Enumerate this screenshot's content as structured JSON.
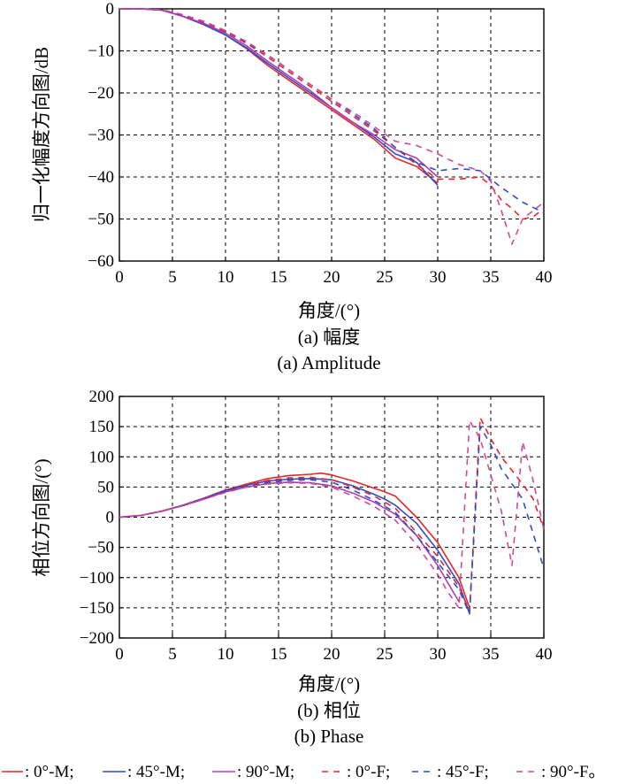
{
  "chart_data": [
    {
      "type": "line",
      "xlabel": "角度/(°)",
      "ylabel": "归一化幅度方向图/dB",
      "xlim": [
        0,
        40
      ],
      "ylim": [
        -60,
        0
      ],
      "x_ticks": [
        "0",
        "5",
        "10",
        "15",
        "20",
        "25",
        "30",
        "35",
        "40"
      ],
      "y_ticks": [
        "0",
        "−10",
        "−20",
        "−30",
        "−40",
        "−50",
        "−60"
      ],
      "grid": true,
      "caption_cn": "(a) 幅度",
      "caption_en": "(a) Amplitude",
      "series": [
        {
          "id": "m0",
          "color": "#e8262a",
          "dash": "solid",
          "points": [
            [
              0,
              0
            ],
            [
              2,
              0
            ],
            [
              4,
              -0.3
            ],
            [
              6,
              -1.8
            ],
            [
              8,
              -3.8
            ],
            [
              10,
              -6.2
            ],
            [
              12,
              -9.5
            ],
            [
              14,
              -13.5
            ],
            [
              16,
              -17
            ],
            [
              18,
              -20.5
            ],
            [
              20,
              -24
            ],
            [
              22,
              -27.5
            ],
            [
              24,
              -31
            ],
            [
              26,
              -35.5
            ],
            [
              28,
              -37.5
            ],
            [
              30,
              -41.5
            ]
          ]
        },
        {
          "id": "m45",
          "color": "#2b4ec8",
          "dash": "solid",
          "points": [
            [
              0,
              0
            ],
            [
              2,
              0
            ],
            [
              4,
              -0.3
            ],
            [
              6,
              -1.8
            ],
            [
              8,
              -3.8
            ],
            [
              10,
              -6.2
            ],
            [
              12,
              -9.3
            ],
            [
              14,
              -13
            ],
            [
              16,
              -16.5
            ],
            [
              18,
              -20
            ],
            [
              20,
              -23.5
            ],
            [
              22,
              -27
            ],
            [
              24,
              -30.5
            ],
            [
              26,
              -34.5
            ],
            [
              28,
              -36.5
            ],
            [
              30,
              -42
            ]
          ]
        },
        {
          "id": "m90",
          "color": "#b03ab0",
          "dash": "solid",
          "points": [
            [
              0,
              0
            ],
            [
              2,
              0
            ],
            [
              4,
              -0.3
            ],
            [
              6,
              -1.8
            ],
            [
              8,
              -3.5
            ],
            [
              10,
              -5.8
            ],
            [
              12,
              -8.8
            ],
            [
              14,
              -12.5
            ],
            [
              16,
              -16
            ],
            [
              18,
              -19.5
            ],
            [
              20,
              -23.5
            ],
            [
              22,
              -27
            ],
            [
              24,
              -30
            ],
            [
              26,
              -33.5
            ],
            [
              28,
              -35.5
            ],
            [
              30,
              -40
            ]
          ]
        },
        {
          "id": "f0",
          "color": "#e8262a",
          "dash": "7 6",
          "points": [
            [
              0,
              0
            ],
            [
              2,
              0
            ],
            [
              4,
              -0.2
            ],
            [
              6,
              -1.5
            ],
            [
              8,
              -3.2
            ],
            [
              10,
              -5.5
            ],
            [
              12,
              -8.2
            ],
            [
              14,
              -11.5
            ],
            [
              16,
              -15
            ],
            [
              18,
              -18.5
            ],
            [
              20,
              -22
            ],
            [
              22,
              -25.5
            ],
            [
              24,
              -29
            ],
            [
              26,
              -33
            ],
            [
              28,
              -37
            ],
            [
              30,
              -40.5
            ],
            [
              32,
              -40.5
            ],
            [
              34,
              -40
            ],
            [
              35,
              -42
            ],
            [
              36,
              -45.5
            ],
            [
              37,
              -47.5
            ],
            [
              38,
              -50
            ],
            [
              39,
              -49.5
            ],
            [
              40,
              -47.5
            ]
          ]
        },
        {
          "id": "f45",
          "color": "#2b4ec8",
          "dash": "7 6",
          "points": [
            [
              0,
              0
            ],
            [
              2,
              0
            ],
            [
              4,
              -0.2
            ],
            [
              6,
              -1.5
            ],
            [
              8,
              -3
            ],
            [
              10,
              -5.2
            ],
            [
              12,
              -8
            ],
            [
              14,
              -11
            ],
            [
              16,
              -14.5
            ],
            [
              18,
              -18
            ],
            [
              20,
              -21.5
            ],
            [
              22,
              -25
            ],
            [
              24,
              -28.5
            ],
            [
              26,
              -33
            ],
            [
              28,
              -36.5
            ],
            [
              30,
              -38.5
            ],
            [
              32,
              -38
            ],
            [
              34,
              -38.5
            ],
            [
              36,
              -42.5
            ],
            [
              38,
              -46
            ],
            [
              40,
              -48.5
            ]
          ]
        },
        {
          "id": "f90",
          "color": "#d0489a",
          "dash": "7 6",
          "points": [
            [
              0,
              0
            ],
            [
              2,
              0
            ],
            [
              4,
              -0.2
            ],
            [
              6,
              -1.4
            ],
            [
              8,
              -3
            ],
            [
              10,
              -5.2
            ],
            [
              12,
              -7.8
            ],
            [
              14,
              -11
            ],
            [
              16,
              -14.5
            ],
            [
              18,
              -18
            ],
            [
              20,
              -21.5
            ],
            [
              22,
              -24.5
            ],
            [
              24,
              -28
            ],
            [
              26,
              -31.5
            ],
            [
              28,
              -32.5
            ],
            [
              30,
              -34.5
            ],
            [
              32,
              -37
            ],
            [
              34,
              -38.5
            ],
            [
              35,
              -41
            ],
            [
              36,
              -48
            ],
            [
              37,
              -56
            ],
            [
              38,
              -50
            ],
            [
              39,
              -48
            ],
            [
              40,
              -46
            ]
          ]
        }
      ]
    },
    {
      "type": "line",
      "xlabel": "角度/(°)",
      "ylabel": "相位方向图/(°)",
      "xlim": [
        0,
        40
      ],
      "ylim": [
        -200,
        200
      ],
      "x_ticks": [
        "0",
        "5",
        "10",
        "15",
        "20",
        "25",
        "30",
        "35",
        "40"
      ],
      "y_ticks": [
        "200",
        "150",
        "100",
        "50",
        "0",
        "−50",
        "−100",
        "−150",
        "−200"
      ],
      "grid": true,
      "caption_cn": "(b) 相位",
      "caption_en": "(b) Phase",
      "series": [
        {
          "id": "m0",
          "color": "#e8262a",
          "dash": "solid",
          "points": [
            [
              0,
              0
            ],
            [
              2,
              3
            ],
            [
              4,
              10
            ],
            [
              6,
              20
            ],
            [
              8,
              32
            ],
            [
              10,
              45
            ],
            [
              12,
              55
            ],
            [
              14,
              64
            ],
            [
              16,
              69
            ],
            [
              18,
              71
            ],
            [
              19,
              73
            ],
            [
              20,
              70
            ],
            [
              22,
              60
            ],
            [
              24,
              48
            ],
            [
              25,
              42
            ],
            [
              26,
              35
            ],
            [
              28,
              0
            ],
            [
              30,
              -42
            ],
            [
              32,
              -100
            ],
            [
              33,
              -150
            ]
          ]
        },
        {
          "id": "m45",
          "color": "#2b4ec8",
          "dash": "solid",
          "points": [
            [
              0,
              0
            ],
            [
              2,
              3
            ],
            [
              4,
              10
            ],
            [
              6,
              20
            ],
            [
              8,
              31
            ],
            [
              10,
              44
            ],
            [
              12,
              53
            ],
            [
              14,
              60
            ],
            [
              16,
              63
            ],
            [
              18,
              64
            ],
            [
              20,
              62
            ],
            [
              22,
              52
            ],
            [
              24,
              38
            ],
            [
              25,
              30
            ],
            [
              26,
              20
            ],
            [
              28,
              -10
            ],
            [
              30,
              -55
            ],
            [
              32,
              -110
            ],
            [
              33,
              -160
            ]
          ]
        },
        {
          "id": "m90",
          "color": "#b03ab0",
          "dash": "solid",
          "points": [
            [
              0,
              0
            ],
            [
              2,
              3
            ],
            [
              4,
              10
            ],
            [
              6,
              19
            ],
            [
              8,
              30
            ],
            [
              10,
              42
            ],
            [
              12,
              50
            ],
            [
              14,
              56
            ],
            [
              16,
              58
            ],
            [
              18,
              57
            ],
            [
              20,
              52
            ],
            [
              22,
              40
            ],
            [
              24,
              25
            ],
            [
              25,
              15
            ],
            [
              26,
              5
            ],
            [
              28,
              -30
            ],
            [
              30,
              -80
            ],
            [
              31,
              -110
            ],
            [
              32,
              -140
            ]
          ]
        },
        {
          "id": "f0",
          "color": "#e8262a",
          "dash": "7 6",
          "points": [
            [
              0,
              0
            ],
            [
              2,
              3
            ],
            [
              4,
              10
            ],
            [
              6,
              20
            ],
            [
              8,
              31
            ],
            [
              10,
              43
            ],
            [
              12,
              53
            ],
            [
              14,
              61
            ],
            [
              16,
              65
            ],
            [
              18,
              66
            ],
            [
              20,
              62
            ],
            [
              22,
              50
            ],
            [
              24,
              35
            ],
            [
              26,
              15
            ],
            [
              28,
              -25
            ],
            [
              30,
              -65
            ],
            [
              32,
              -115
            ],
            [
              33,
              -155
            ],
            [
              34,
              165
            ],
            [
              35,
              130
            ],
            [
              36,
              100
            ],
            [
              38,
              55
            ],
            [
              39,
              30
            ],
            [
              40,
              -20
            ]
          ]
        },
        {
          "id": "f45",
          "color": "#2b4ec8",
          "dash": "7 6",
          "points": [
            [
              0,
              0
            ],
            [
              2,
              3
            ],
            [
              4,
              10
            ],
            [
              6,
              20
            ],
            [
              8,
              31
            ],
            [
              10,
              43
            ],
            [
              12,
              52
            ],
            [
              14,
              58
            ],
            [
              16,
              61
            ],
            [
              18,
              62
            ],
            [
              20,
              58
            ],
            [
              22,
              45
            ],
            [
              24,
              28
            ],
            [
              26,
              8
            ],
            [
              28,
              -30
            ],
            [
              30,
              -75
            ],
            [
              32,
              -120
            ],
            [
              33,
              -160
            ],
            [
              34,
              150
            ],
            [
              35,
              120
            ],
            [
              36,
              80
            ],
            [
              38,
              30
            ],
            [
              40,
              -85
            ]
          ]
        },
        {
          "id": "f90",
          "color": "#d0489a",
          "dash": "7 6",
          "points": [
            [
              0,
              0
            ],
            [
              2,
              3
            ],
            [
              4,
              10
            ],
            [
              6,
              19
            ],
            [
              8,
              30
            ],
            [
              10,
              41
            ],
            [
              12,
              50
            ],
            [
              14,
              55
            ],
            [
              16,
              57
            ],
            [
              18,
              56
            ],
            [
              20,
              50
            ],
            [
              22,
              35
            ],
            [
              24,
              18
            ],
            [
              26,
              -5
            ],
            [
              28,
              -45
            ],
            [
              30,
              -95
            ],
            [
              31,
              -125
            ],
            [
              32,
              -150
            ],
            [
              33,
              160
            ],
            [
              34,
              130
            ],
            [
              35,
              70
            ],
            [
              36,
              10
            ],
            [
              37,
              -80
            ],
            [
              38,
              125
            ],
            [
              39,
              60
            ],
            [
              40,
              -20
            ]
          ]
        }
      ]
    }
  ],
  "legend": [
    {
      "series": "m0",
      "dash": "solid",
      "color": "#e8262a",
      "text": ": 0°-M;"
    },
    {
      "series": "m45",
      "dash": "solid",
      "color": "#2b4ec8",
      "text": ": 45°-M;"
    },
    {
      "series": "m90",
      "dash": "solid",
      "color": "#b03ab0",
      "text": ": 90°-M;"
    },
    {
      "series": "f0",
      "dash": "7 6",
      "color": "#e8262a",
      "text": ": 0°-F;"
    },
    {
      "series": "f45",
      "dash": "7 6",
      "color": "#2b4ec8",
      "text": ": 45°-F;"
    },
    {
      "series": "f90",
      "dash": "7 6",
      "color": "#d0489a",
      "text": ": 90°-F。"
    }
  ]
}
